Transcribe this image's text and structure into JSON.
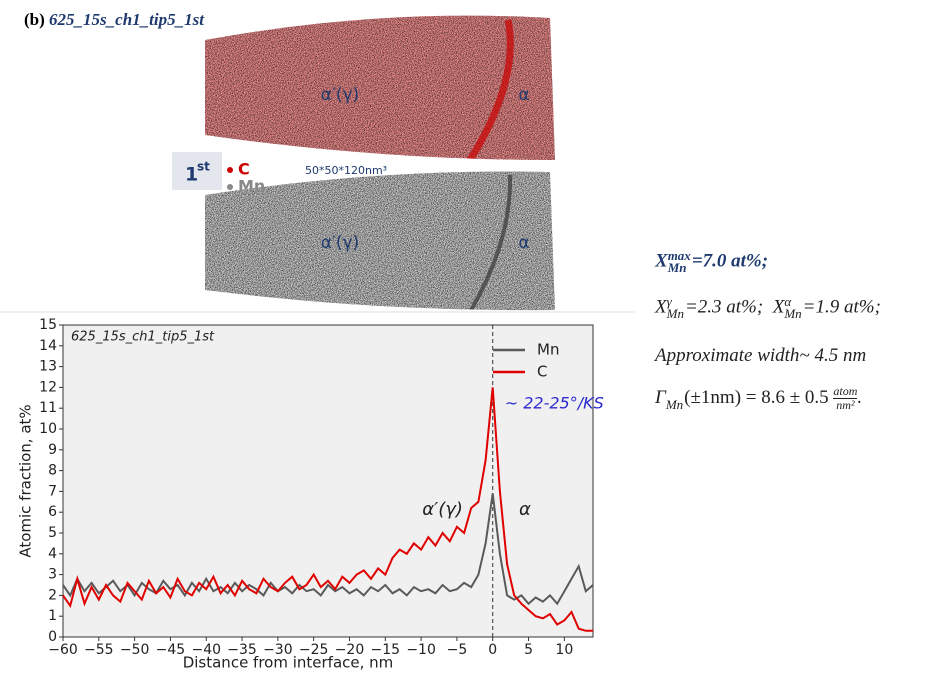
{
  "header": {
    "label": "(b)",
    "title": "625_15s_ch1_tip5_1st"
  },
  "atom_maps": {
    "top": {
      "left_phase": "α′(γ)",
      "right_phase": "α"
    },
    "bottom": {
      "left_phase": "α′(γ)",
      "right_phase": "α"
    },
    "tag": {
      "number": "1",
      "suffix": "st"
    },
    "species": [
      "C",
      "Mn"
    ],
    "size": "50*50*120nm³"
  },
  "formulas": {
    "max": {
      "symbol": "X",
      "sub": "Mn",
      "sup": "max",
      "rest": "=7.0 at%;"
    },
    "bulk": [
      {
        "symbol": "X",
        "sub": "Mn",
        "sup": "γ",
        "rest": "=2.3 at%;"
      },
      {
        "symbol": "X",
        "sub": "Mn",
        "sup": "α",
        "rest": "=1.9 at%;"
      }
    ],
    "width": "Approximate width~ 4.5 nm",
    "excess": {
      "symbol": "Γ",
      "sub": "Mn",
      "middle": "(±1nm) = 8.6 ± 0.5",
      "numerator": "atom",
      "denominator": "nm²",
      "end": "."
    }
  },
  "chart_data": {
    "type": "line",
    "inner_title": "625_15s_ch1_tip5_1st",
    "x_label": "Distance from interface, nm",
    "y_label": "Atomic fraction, at%",
    "annotations": [
      "~ 22-25°/KS",
      "α′(γ)",
      "α"
    ],
    "x": [
      -60,
      -59,
      -58,
      -57,
      -56,
      -55,
      -54,
      -53,
      -52,
      -51,
      -50,
      -49,
      -48,
      -47,
      -46,
      -45,
      -44,
      -43,
      -42,
      -41,
      -40,
      -39,
      -38,
      -37,
      -36,
      -35,
      -34,
      -33,
      -32,
      -31,
      -30,
      -29,
      -28,
      -27,
      -26,
      -25,
      -24,
      -23,
      -22,
      -21,
      -20,
      -19,
      -18,
      -17,
      -16,
      -15,
      -14,
      -13,
      -12,
      -11,
      -10,
      -9,
      -8,
      -7,
      -6,
      -5,
      -4,
      -3,
      -2,
      -1,
      0,
      1,
      2,
      3,
      4,
      5,
      6,
      7,
      8,
      9,
      10,
      11,
      12,
      13,
      14
    ],
    "series": [
      {
        "name": "Mn",
        "color": "#5a5a5a",
        "values": [
          2.5,
          2.0,
          2.8,
          2.2,
          2.6,
          2.1,
          2.4,
          2.7,
          2.2,
          2.5,
          2.0,
          2.6,
          2.3,
          2.1,
          2.7,
          2.3,
          2.5,
          2.0,
          2.6,
          2.2,
          2.8,
          2.2,
          2.4,
          2.1,
          2.6,
          2.2,
          2.5,
          2.3,
          2.0,
          2.6,
          2.2,
          2.4,
          2.1,
          2.5,
          2.2,
          2.3,
          2.0,
          2.5,
          2.2,
          2.4,
          2.1,
          2.3,
          2.0,
          2.4,
          2.2,
          2.5,
          2.1,
          2.3,
          2.0,
          2.4,
          2.2,
          2.3,
          2.1,
          2.5,
          2.2,
          2.3,
          2.6,
          2.4,
          3.0,
          4.5,
          6.9,
          4.0,
          2.0,
          1.8,
          2.0,
          1.6,
          1.9,
          1.7,
          2.0,
          1.6,
          2.2,
          2.8,
          3.4,
          2.2,
          2.5
        ]
      },
      {
        "name": "C",
        "color": "#e00000",
        "values": [
          2.0,
          1.5,
          2.8,
          1.6,
          2.4,
          1.8,
          2.5,
          2.0,
          1.7,
          2.6,
          2.2,
          1.8,
          2.7,
          2.1,
          2.4,
          1.9,
          2.8,
          2.2,
          2.0,
          2.6,
          2.3,
          2.9,
          2.1,
          2.5,
          2.0,
          2.7,
          2.3,
          2.1,
          2.8,
          2.4,
          2.2,
          2.6,
          2.9,
          2.3,
          2.5,
          3.0,
          2.4,
          2.7,
          2.3,
          2.9,
          2.6,
          3.0,
          3.2,
          2.8,
          3.3,
          3.0,
          3.8,
          4.2,
          4.0,
          4.5,
          4.2,
          4.8,
          4.4,
          5.0,
          4.6,
          5.3,
          5.0,
          6.2,
          6.5,
          8.5,
          12.0,
          7.0,
          3.5,
          2.0,
          1.6,
          1.3,
          1.0,
          0.9,
          1.1,
          0.6,
          0.8,
          1.2,
          0.4,
          0.3,
          0.3
        ]
      }
    ],
    "xlim": [
      -60,
      14
    ],
    "xticks": [
      {
        "value": -60,
        "label": "−60"
      },
      {
        "value": -55,
        "label": "−55"
      },
      {
        "value": -50,
        "label": "−50"
      },
      {
        "value": -45,
        "label": "−45"
      },
      {
        "value": -40,
        "label": "−40"
      },
      {
        "value": -35,
        "label": "−35"
      },
      {
        "value": -30,
        "label": "−30"
      },
      {
        "value": -25,
        "label": "−25"
      },
      {
        "value": -20,
        "label": "−20"
      },
      {
        "value": -15,
        "label": "−15"
      },
      {
        "value": -10,
        "label": "−10"
      },
      {
        "value": -5,
        "label": "−5"
      },
      0,
      5,
      10
    ],
    "ylim": [
      0,
      15
    ],
    "yticks": [
      0,
      1,
      2,
      3,
      4,
      5,
      6,
      7,
      8,
      9,
      10,
      11,
      12,
      13,
      14,
      15
    ],
    "legend": "upper right"
  }
}
